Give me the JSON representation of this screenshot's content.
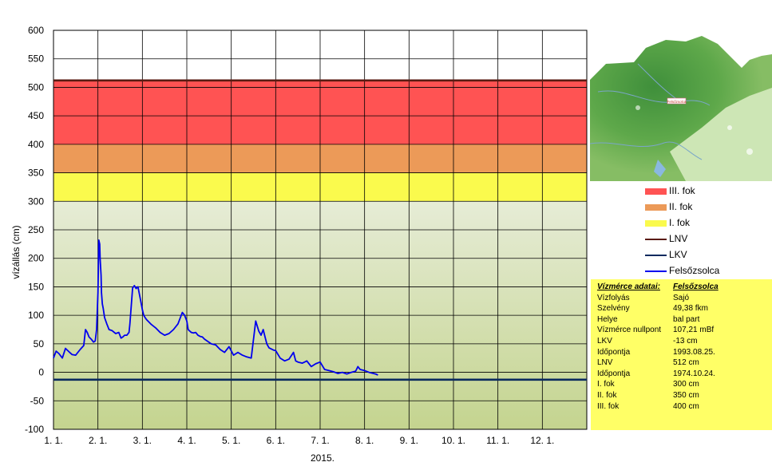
{
  "chart_data": {
    "type": "line",
    "title": "",
    "xlabel": "2015.",
    "ylabel": "vízállás (cm)",
    "ylim": [
      -100,
      600
    ],
    "yticks": [
      "600",
      "550",
      "500",
      "450",
      "400",
      "350",
      "300",
      "250",
      "200",
      "150",
      "100",
      "50",
      "0",
      "-50",
      "-100"
    ],
    "xlim": [
      1,
      13
    ],
    "xticks": [
      "1. 1.",
      "2. 1.",
      "3. 1.",
      "4. 1.",
      "5. 1.",
      "6. 1.",
      "7. 1.",
      "8. 1.",
      "9. 1.",
      "10. 1.",
      "11. 1.",
      "12. 1."
    ],
    "grid": true,
    "legend_position": "right",
    "bands": [
      {
        "name": "III. fok",
        "from": 400,
        "to": 512,
        "color": "#ff5353"
      },
      {
        "name": "II. fok",
        "from": 350,
        "to": 400,
        "color": "#ec9a58"
      },
      {
        "name": "I. fok",
        "from": 300,
        "to": 350,
        "color": "#fafa4d"
      }
    ],
    "lines": [
      {
        "name": "LNV",
        "value": 512,
        "color": "#5a1a12"
      },
      {
        "name": "LKV",
        "value": -13,
        "color": "#0a2a5e"
      }
    ],
    "series": [
      {
        "name": "Felsőzsolca",
        "color": "#0000ee",
        "x": [
          1.0,
          1.06,
          1.12,
          1.2,
          1.27,
          1.35,
          1.42,
          1.5,
          1.6,
          1.68,
          1.72,
          1.76,
          1.8,
          1.85,
          1.9,
          1.94,
          1.97,
          2.0,
          2.02,
          2.04,
          2.05,
          2.07,
          2.08,
          2.1,
          2.12,
          2.15,
          2.2,
          2.25,
          2.32,
          2.4,
          2.47,
          2.52,
          2.56,
          2.6,
          2.65,
          2.7,
          2.72,
          2.78,
          2.82,
          2.86,
          2.9,
          2.95,
          3.0,
          3.03,
          3.07,
          3.1,
          3.15,
          3.2,
          3.3,
          3.4,
          3.5,
          3.6,
          3.7,
          3.8,
          3.9,
          3.95,
          4.0,
          4.03,
          4.07,
          4.1,
          4.15,
          4.2,
          4.25,
          4.3,
          4.35,
          4.4,
          4.55,
          4.65,
          4.75,
          4.85,
          4.95,
          5.05,
          5.15,
          5.25,
          5.35,
          5.45,
          5.55,
          5.62,
          5.67,
          5.72,
          5.76,
          5.8,
          5.85,
          5.9,
          5.95,
          6.0,
          6.1,
          6.2,
          6.3,
          6.4,
          6.45,
          6.5,
          6.6,
          6.7,
          6.8,
          6.9,
          7.0,
          7.1,
          7.2,
          7.3,
          7.4,
          7.5,
          7.6,
          7.7,
          7.8,
          7.85,
          7.9,
          8.0,
          8.1,
          8.2,
          8.25,
          8.3
        ],
        "y": [
          25,
          37,
          33,
          25,
          42,
          36,
          31,
          30,
          40,
          47,
          75,
          70,
          62,
          58,
          53,
          55,
          75,
          140,
          232,
          225,
          200,
          170,
          140,
          120,
          112,
          96,
          85,
          75,
          73,
          68,
          70,
          60,
          62,
          65,
          65,
          70,
          85,
          148,
          152,
          147,
          150,
          130,
          110,
          100,
          95,
          92,
          88,
          84,
          78,
          70,
          65,
          68,
          75,
          85,
          105,
          100,
          90,
          75,
          72,
          70,
          69,
          70,
          65,
          63,
          62,
          58,
          50,
          48,
          40,
          35,
          45,
          30,
          35,
          30,
          27,
          25,
          90,
          72,
          65,
          75,
          62,
          50,
          43,
          41,
          39,
          38,
          25,
          20,
          23,
          35,
          20,
          18,
          16,
          20,
          10,
          15,
          18,
          5,
          3,
          1,
          -2,
          0,
          -3,
          0,
          2,
          10,
          5,
          3,
          0,
          -2,
          -3,
          -5
        ]
      }
    ]
  },
  "map": {
    "label": "Felsőzsolca"
  },
  "info": {
    "header": {
      "label": "Vízmérce adatai:",
      "value": "Felsőzsolca"
    },
    "rows": [
      {
        "label": "Vízfolyás",
        "value": "Sajó"
      },
      {
        "label": "Szelvény",
        "value": "49,38 fkm"
      },
      {
        "label": "Helye",
        "value": "bal part"
      },
      {
        "label": "Vízmérce nullpont",
        "value": "107,21 mBf"
      },
      {
        "label": "LKV",
        "value": "-13 cm"
      },
      {
        "label": "Időpontja",
        "value": "1993.08.25."
      },
      {
        "label": "LNV",
        "value": "512 cm"
      },
      {
        "label": "Időpontja",
        "value": "1974.10.24."
      },
      {
        "label": "I. fok",
        "value": "300 cm"
      },
      {
        "label": "II. fok",
        "value": "350 cm"
      },
      {
        "label": "III. fok",
        "value": "400 cm"
      }
    ]
  }
}
